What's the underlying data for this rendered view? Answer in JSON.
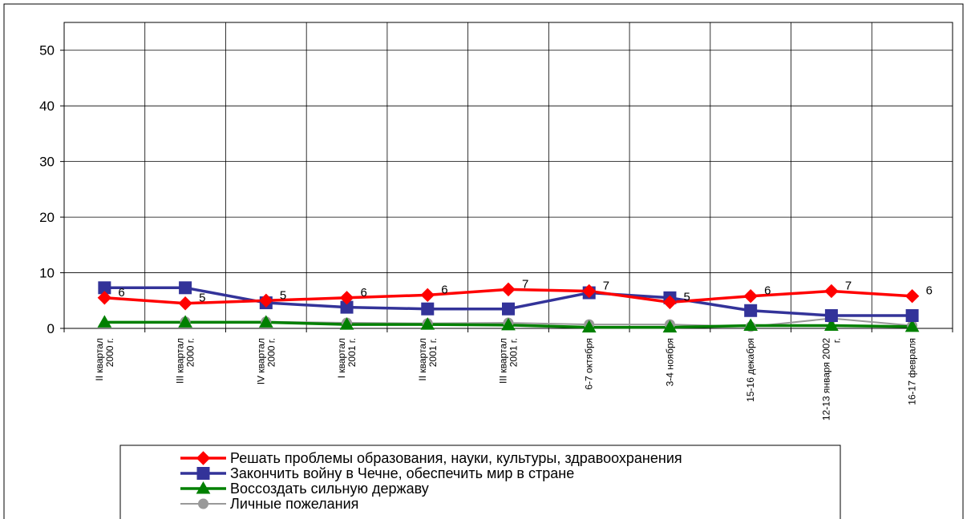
{
  "chart_data": {
    "type": "line",
    "title": "",
    "xlabel": "",
    "ylabel": "",
    "ylim": [
      0,
      55
    ],
    "yticks": [
      0,
      10,
      20,
      30,
      40,
      50
    ],
    "grid": true,
    "legend_position": "bottom",
    "categories": [
      [
        "II квартал",
        "2000 г."
      ],
      [
        "III квартал",
        "2000 г."
      ],
      [
        "IV квартал",
        "2000 г."
      ],
      [
        "I квартал",
        "2001 г."
      ],
      [
        "II квартал",
        "2001 г."
      ],
      [
        "III квартал",
        "2001 г."
      ],
      [
        "6-7 октября"
      ],
      [
        "3-4 ноября"
      ],
      [
        "15-16 декабря"
      ],
      [
        "12-13 января 2002",
        "г."
      ],
      [
        "16-17 февраля"
      ]
    ],
    "series": [
      {
        "name": "Решать проблемы образования, науки, культуры, здравоохранения",
        "color": "#ff0000",
        "marker": "diamond",
        "values": [
          5.5,
          4.5,
          5,
          5.5,
          6,
          7,
          6.7,
          4.7,
          5.8,
          6.7,
          5.8
        ],
        "labels": [
          "6",
          "5",
          "5",
          "6",
          "6",
          "7",
          "7",
          "5",
          "6",
          "7",
          "6"
        ]
      },
      {
        "name": "Закончить войну в Чечне, обеспечить мир в стране",
        "color": "#333399",
        "marker": "square",
        "values": [
          7.3,
          7.3,
          4.6,
          3.8,
          3.5,
          3.5,
          6.4,
          5.5,
          3.2,
          2.3,
          2.3
        ],
        "labels": []
      },
      {
        "name": "Воссоздать сильную державу",
        "color": "#008000",
        "marker": "triangle",
        "values": [
          1.1,
          1.1,
          1.1,
          0.7,
          0.7,
          0.6,
          0.2,
          0.2,
          0.5,
          0.5,
          0.3
        ],
        "labels": []
      },
      {
        "name": "Личные пожелания",
        "color": "#999999",
        "marker": "circle",
        "values": [
          null,
          1.2,
          1.2,
          1.0,
          0.9,
          1.0,
          0.7,
          0.7,
          0.3,
          1.8,
          0.5
        ],
        "labels": []
      }
    ]
  }
}
